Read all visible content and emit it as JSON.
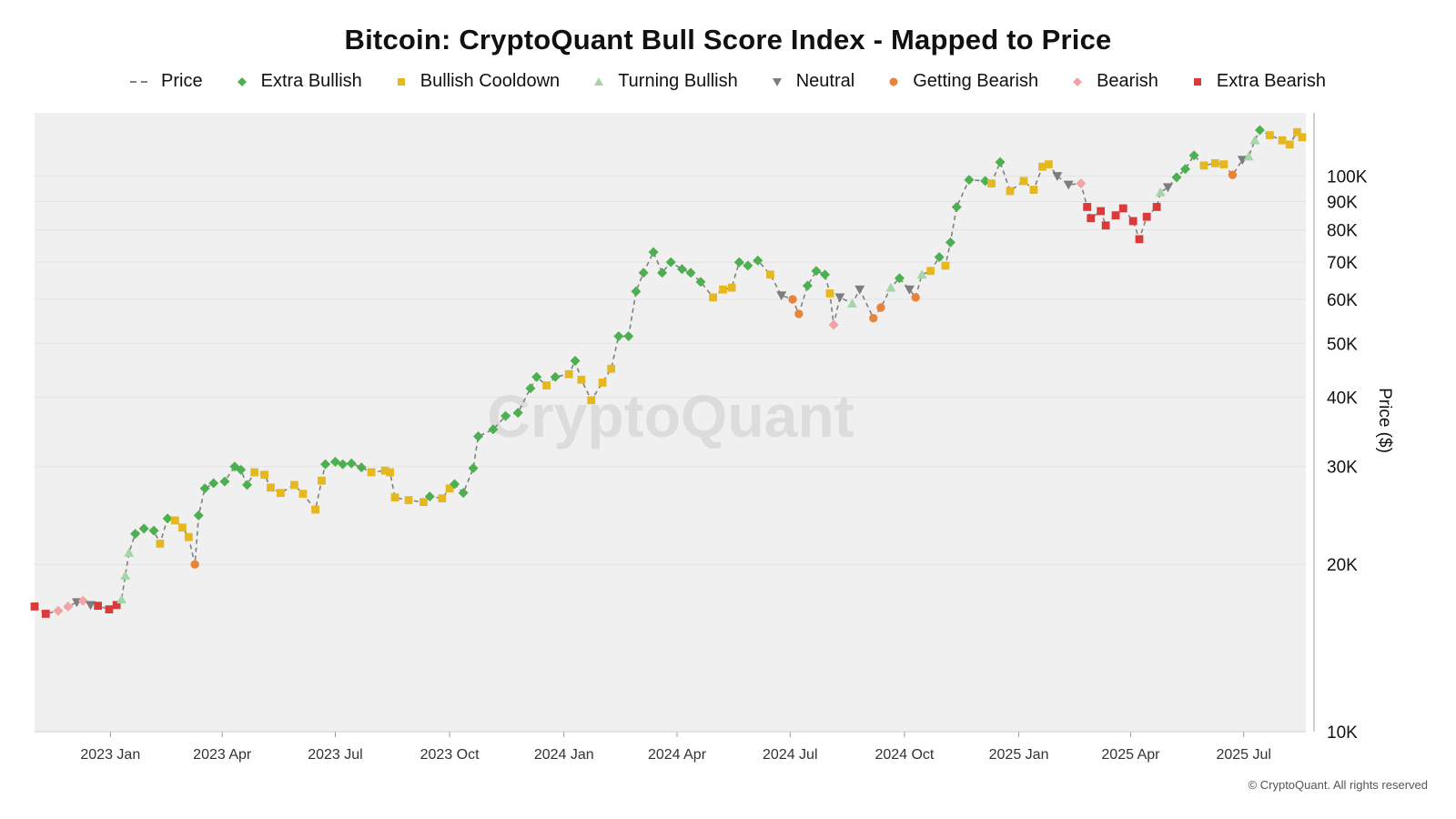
{
  "chart_data": {
    "type": "scatter",
    "title": "Bitcoin: CryptoQuant Bull Score Index - Mapped to Price",
    "xlabel": "",
    "ylabel": "Price ($)",
    "y_scale": "log",
    "ylim": [
      10000,
      130000
    ],
    "xlim": [
      "2022-11-01",
      "2025-08-20"
    ],
    "grid": true,
    "legend_position": "top-center",
    "watermark": "CryptoQuant",
    "x_ticks": [
      "2023 Jan",
      "2023 Apr",
      "2023 Jul",
      "2023 Oct",
      "2024 Jan",
      "2024 Apr",
      "2024 Jul",
      "2024 Oct",
      "2025 Jan",
      "2025 Apr",
      "2025 Jul"
    ],
    "x_tick_dates": [
      "2023-01-01",
      "2023-04-01",
      "2023-07-01",
      "2023-10-01",
      "2024-01-01",
      "2024-04-01",
      "2024-07-01",
      "2024-10-01",
      "2025-01-01",
      "2025-04-01",
      "2025-07-01"
    ],
    "y_ticks": [
      {
        "value": 10000,
        "label": "10K"
      },
      {
        "value": 20000,
        "label": "20K"
      },
      {
        "value": 30000,
        "label": "30K"
      },
      {
        "value": 40000,
        "label": "40K"
      },
      {
        "value": 50000,
        "label": "50K"
      },
      {
        "value": 60000,
        "label": "60K"
      },
      {
        "value": 70000,
        "label": "70K"
      },
      {
        "value": 80000,
        "label": "80K"
      },
      {
        "value": 90000,
        "label": "90K"
      },
      {
        "value": 100000,
        "label": "100K"
      }
    ],
    "legend": [
      {
        "key": "price",
        "label": "Price",
        "marker": "dash",
        "color": "#808080"
      },
      {
        "key": "extra_bullish",
        "label": "Extra Bullish",
        "marker": "diamond",
        "color": "#4caf50"
      },
      {
        "key": "bullish_cooldown",
        "label": "Bullish Cooldown",
        "marker": "square",
        "color": "#e6b820"
      },
      {
        "key": "turning_bullish",
        "label": "Turning Bullish",
        "marker": "triangle-up",
        "color": "#a5d6a7"
      },
      {
        "key": "neutral",
        "label": "Neutral",
        "marker": "triangle-down",
        "color": "#7d7d7d"
      },
      {
        "key": "getting_bearish",
        "label": "Getting Bearish",
        "marker": "circle",
        "color": "#e8833a"
      },
      {
        "key": "bearish",
        "label": "Bearish",
        "marker": "diamond",
        "color": "#f2a3a3"
      },
      {
        "key": "extra_bearish",
        "label": "Extra Bearish",
        "marker": "square",
        "color": "#d93b3b"
      }
    ],
    "series": [
      {
        "name": "Price",
        "points": [
          [
            "2022-11-01",
            16800,
            "extra_bearish"
          ],
          [
            "2022-11-10",
            16300,
            "extra_bearish"
          ],
          [
            "2022-11-20",
            16500,
            "bearish"
          ],
          [
            "2022-11-28",
            16800,
            "bearish"
          ],
          [
            "2022-12-05",
            17100,
            "neutral"
          ],
          [
            "2022-12-10",
            17200,
            "bearish"
          ],
          [
            "2022-12-16",
            16900,
            "neutral"
          ],
          [
            "2022-12-22",
            16850,
            "extra_bearish"
          ],
          [
            "2022-12-31",
            16600,
            "extra_bearish"
          ],
          [
            "2023-01-06",
            16900,
            "extra_bearish"
          ],
          [
            "2023-01-10",
            17300,
            "turning_bullish"
          ],
          [
            "2023-01-13",
            19100,
            "turning_bullish"
          ],
          [
            "2023-01-16",
            21000,
            "turning_bullish"
          ],
          [
            "2023-01-21",
            22700,
            "extra_bullish"
          ],
          [
            "2023-01-28",
            23200,
            "extra_bullish"
          ],
          [
            "2023-02-05",
            23000,
            "extra_bullish"
          ],
          [
            "2023-02-10",
            21800,
            "bullish_cooldown"
          ],
          [
            "2023-02-16",
            24200,
            "extra_bullish"
          ],
          [
            "2023-02-22",
            24000,
            "bullish_cooldown"
          ],
          [
            "2023-02-28",
            23300,
            "bullish_cooldown"
          ],
          [
            "2023-03-05",
            22400,
            "bullish_cooldown"
          ],
          [
            "2023-03-10",
            20000,
            "getting_bearish"
          ],
          [
            "2023-03-13",
            24500,
            "extra_bullish"
          ],
          [
            "2023-03-18",
            27400,
            "extra_bullish"
          ],
          [
            "2023-03-25",
            28000,
            "extra_bullish"
          ],
          [
            "2023-04-03",
            28200,
            "extra_bullish"
          ],
          [
            "2023-04-11",
            30000,
            "extra_bullish"
          ],
          [
            "2023-04-16",
            29600,
            "extra_bullish"
          ],
          [
            "2023-04-21",
            27800,
            "extra_bullish"
          ],
          [
            "2023-04-27",
            29300,
            "bullish_cooldown"
          ],
          [
            "2023-05-05",
            29000,
            "bullish_cooldown"
          ],
          [
            "2023-05-10",
            27500,
            "bullish_cooldown"
          ],
          [
            "2023-05-18",
            26900,
            "bullish_cooldown"
          ],
          [
            "2023-05-29",
            27800,
            "bullish_cooldown"
          ],
          [
            "2023-06-05",
            26800,
            "bullish_cooldown"
          ],
          [
            "2023-06-15",
            25100,
            "bullish_cooldown"
          ],
          [
            "2023-06-20",
            28300,
            "bullish_cooldown"
          ],
          [
            "2023-06-23",
            30300,
            "extra_bullish"
          ],
          [
            "2023-07-01",
            30600,
            "extra_bullish"
          ],
          [
            "2023-07-07",
            30300,
            "extra_bullish"
          ],
          [
            "2023-07-14",
            30400,
            "extra_bullish"
          ],
          [
            "2023-07-22",
            29900,
            "extra_bullish"
          ],
          [
            "2023-07-30",
            29300,
            "bullish_cooldown"
          ],
          [
            "2023-08-10",
            29500,
            "bullish_cooldown"
          ],
          [
            "2023-08-14",
            29300,
            "bullish_cooldown"
          ],
          [
            "2023-08-18",
            26400,
            "bullish_cooldown"
          ],
          [
            "2023-08-29",
            26100,
            "bullish_cooldown"
          ],
          [
            "2023-09-10",
            25900,
            "bullish_cooldown"
          ],
          [
            "2023-09-15",
            26500,
            "extra_bullish"
          ],
          [
            "2023-09-25",
            26300,
            "bullish_cooldown"
          ],
          [
            "2023-10-01",
            27400,
            "bullish_cooldown"
          ],
          [
            "2023-10-05",
            27900,
            "extra_bullish"
          ],
          [
            "2023-10-12",
            26900,
            "extra_bullish"
          ],
          [
            "2023-10-20",
            29800,
            "extra_bullish"
          ],
          [
            "2023-10-24",
            34000,
            "extra_bullish"
          ],
          [
            "2023-11-05",
            35000,
            "extra_bullish"
          ],
          [
            "2023-11-15",
            37000,
            "extra_bullish"
          ],
          [
            "2023-11-25",
            37500,
            "extra_bullish"
          ],
          [
            "2023-12-05",
            41500,
            "extra_bullish"
          ],
          [
            "2023-12-10",
            43500,
            "extra_bullish"
          ],
          [
            "2023-12-18",
            42000,
            "bullish_cooldown"
          ],
          [
            "2023-12-25",
            43500,
            "extra_bullish"
          ],
          [
            "2024-01-05",
            44000,
            "bullish_cooldown"
          ],
          [
            "2024-01-10",
            46500,
            "extra_bullish"
          ],
          [
            "2024-01-15",
            43000,
            "bullish_cooldown"
          ],
          [
            "2024-01-23",
            39500,
            "bullish_cooldown"
          ],
          [
            "2024-02-01",
            42500,
            "bullish_cooldown"
          ],
          [
            "2024-02-08",
            45000,
            "bullish_cooldown"
          ],
          [
            "2024-02-14",
            51500,
            "extra_bullish"
          ],
          [
            "2024-02-22",
            51500,
            "extra_bullish"
          ],
          [
            "2024-02-28",
            62000,
            "extra_bullish"
          ],
          [
            "2024-03-05",
            67000,
            "extra_bullish"
          ],
          [
            "2024-03-13",
            73000,
            "extra_bullish"
          ],
          [
            "2024-03-20",
            67000,
            "extra_bullish"
          ],
          [
            "2024-03-27",
            70000,
            "extra_bullish"
          ],
          [
            "2024-04-05",
            68000,
            "extra_bullish"
          ],
          [
            "2024-04-12",
            67000,
            "extra_bullish"
          ],
          [
            "2024-04-20",
            64500,
            "extra_bullish"
          ],
          [
            "2024-04-30",
            60500,
            "bullish_cooldown"
          ],
          [
            "2024-05-08",
            62500,
            "bullish_cooldown"
          ],
          [
            "2024-05-15",
            63000,
            "bullish_cooldown"
          ],
          [
            "2024-05-21",
            70000,
            "extra_bullish"
          ],
          [
            "2024-05-28",
            69000,
            "extra_bullish"
          ],
          [
            "2024-06-05",
            70500,
            "extra_bullish"
          ],
          [
            "2024-06-15",
            66500,
            "bullish_cooldown"
          ],
          [
            "2024-06-24",
            61000,
            "neutral"
          ],
          [
            "2024-07-03",
            60000,
            "getting_bearish"
          ],
          [
            "2024-07-08",
            56500,
            "getting_bearish"
          ],
          [
            "2024-07-15",
            63500,
            "extra_bullish"
          ],
          [
            "2024-07-22",
            67500,
            "extra_bullish"
          ],
          [
            "2024-07-29",
            66500,
            "extra_bullish"
          ],
          [
            "2024-08-02",
            61500,
            "bullish_cooldown"
          ],
          [
            "2024-08-05",
            54000,
            "bearish"
          ],
          [
            "2024-08-10",
            60500,
            "neutral"
          ],
          [
            "2024-08-20",
            59000,
            "turning_bullish"
          ],
          [
            "2024-08-26",
            62500,
            "neutral"
          ],
          [
            "2024-09-06",
            55500,
            "getting_bearish"
          ],
          [
            "2024-09-12",
            58000,
            "getting_bearish"
          ],
          [
            "2024-09-20",
            63000,
            "turning_bullish"
          ],
          [
            "2024-09-27",
            65500,
            "extra_bullish"
          ],
          [
            "2024-10-05",
            62500,
            "neutral"
          ],
          [
            "2024-10-10",
            60500,
            "getting_bearish"
          ],
          [
            "2024-10-15",
            66500,
            "turning_bullish"
          ],
          [
            "2024-10-22",
            67500,
            "bullish_cooldown"
          ],
          [
            "2024-10-29",
            71500,
            "extra_bullish"
          ],
          [
            "2024-11-03",
            69000,
            "bullish_cooldown"
          ],
          [
            "2024-11-07",
            76000,
            "extra_bullish"
          ],
          [
            "2024-11-12",
            88000,
            "extra_bullish"
          ],
          [
            "2024-11-22",
            98500,
            "extra_bullish"
          ],
          [
            "2024-12-05",
            98000,
            "extra_bullish"
          ],
          [
            "2024-12-10",
            97000,
            "bullish_cooldown"
          ],
          [
            "2024-12-17",
            106000,
            "extra_bullish"
          ],
          [
            "2024-12-25",
            94000,
            "bullish_cooldown"
          ],
          [
            "2025-01-05",
            98000,
            "bullish_cooldown"
          ],
          [
            "2025-01-13",
            94500,
            "bullish_cooldown"
          ],
          [
            "2025-01-20",
            104000,
            "bullish_cooldown"
          ],
          [
            "2025-01-25",
            105000,
            "bullish_cooldown"
          ],
          [
            "2025-02-01",
            100000,
            "neutral"
          ],
          [
            "2025-02-10",
            96500,
            "neutral"
          ],
          [
            "2025-02-20",
            97000,
            "bearish"
          ],
          [
            "2025-02-25",
            88000,
            "extra_bearish"
          ],
          [
            "2025-02-28",
            84000,
            "extra_bearish"
          ],
          [
            "2025-03-08",
            86500,
            "extra_bearish"
          ],
          [
            "2025-03-12",
            81500,
            "extra_bearish"
          ],
          [
            "2025-03-20",
            85000,
            "extra_bearish"
          ],
          [
            "2025-03-26",
            87500,
            "extra_bearish"
          ],
          [
            "2025-04-03",
            83000,
            "extra_bearish"
          ],
          [
            "2025-04-08",
            77000,
            "extra_bearish"
          ],
          [
            "2025-04-14",
            84500,
            "extra_bearish"
          ],
          [
            "2025-04-22",
            88000,
            "extra_bearish"
          ],
          [
            "2025-04-25",
            93500,
            "turning_bullish"
          ],
          [
            "2025-05-01",
            95500,
            "neutral"
          ],
          [
            "2025-05-08",
            99500,
            "extra_bullish"
          ],
          [
            "2025-05-15",
            103000,
            "extra_bullish"
          ],
          [
            "2025-05-22",
            109000,
            "extra_bullish"
          ],
          [
            "2025-05-30",
            104500,
            "bullish_cooldown"
          ],
          [
            "2025-06-08",
            105500,
            "bullish_cooldown"
          ],
          [
            "2025-06-15",
            105000,
            "bullish_cooldown"
          ],
          [
            "2025-06-22",
            100500,
            "getting_bearish"
          ],
          [
            "2025-06-30",
            107000,
            "neutral"
          ],
          [
            "2025-07-05",
            108500,
            "turning_bullish"
          ],
          [
            "2025-07-10",
            116000,
            "turning_bullish"
          ],
          [
            "2025-07-14",
            121000,
            "extra_bullish"
          ],
          [
            "2025-07-22",
            118500,
            "bullish_cooldown"
          ],
          [
            "2025-08-01",
            116000,
            "bullish_cooldown"
          ],
          [
            "2025-08-07",
            114000,
            "bullish_cooldown"
          ],
          [
            "2025-08-13",
            120000,
            "bullish_cooldown"
          ],
          [
            "2025-08-17",
            117500,
            "bullish_cooldown"
          ]
        ]
      }
    ],
    "copyright": "© CryptoQuant. All rights reserved"
  }
}
